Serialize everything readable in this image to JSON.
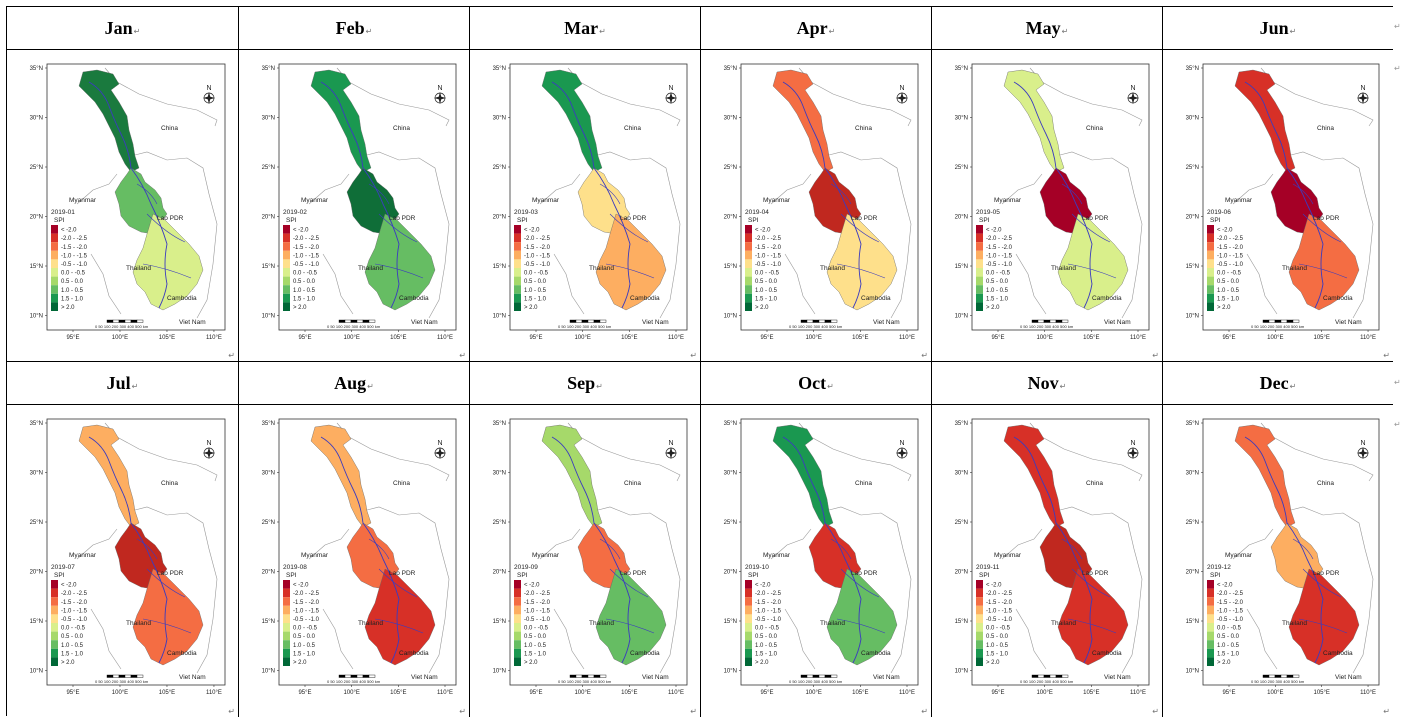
{
  "paragraph_mark": "↵",
  "map": {
    "north_label": "N",
    "lat_labels": [
      "35°N",
      "30°N",
      "25°N",
      "20°N",
      "15°N",
      "10°N"
    ],
    "lon_labels": [
      "95°E",
      "100°E",
      "105°E",
      "110°E"
    ],
    "countries": {
      "china": "China",
      "myanmar": "Myanmar",
      "laos": "Lao PDR",
      "thailand": "Thailand",
      "cambodia": "Cambodia",
      "vietnam": "Viet Nam"
    },
    "scale_label": "0 50 100 200 300 400 500 km",
    "legend_title": "SPI",
    "legend_labels": [
      "< -2.0",
      "-2.0 - -2.5",
      "-1.5 - -2.0",
      "-1.0 - -1.5",
      "-0.5 - -1.0",
      "0.0 - -0.5",
      "0.5 - 0.0",
      "1.0 - 0.5",
      "1.5 - 1.0",
      "> 2.0"
    ],
    "legend_colors": [
      "#a50026",
      "#d73027",
      "#f46d43",
      "#fdae61",
      "#fee08b",
      "#d9ef8b",
      "#a6d96a",
      "#66bd63",
      "#1a9850",
      "#006837"
    ]
  },
  "panels": [
    {
      "month": "Jan",
      "date": "2019-01",
      "upper": "#1a7a3e",
      "middle": "#66bd63",
      "lower": "#d9ef8b"
    },
    {
      "month": "Feb",
      "date": "2019-02",
      "upper": "#1a9850",
      "middle": "#0f6e38",
      "lower": "#66bd63"
    },
    {
      "month": "Mar",
      "date": "2019-03",
      "upper": "#1a9850",
      "middle": "#fee08b",
      "lower": "#fdae61"
    },
    {
      "month": "Apr",
      "date": "2019-04",
      "upper": "#f46d43",
      "middle": "#c0281f",
      "lower": "#fee08b"
    },
    {
      "month": "May",
      "date": "2019-05",
      "upper": "#d9ef8b",
      "middle": "#a50026",
      "lower": "#d9ef8b"
    },
    {
      "month": "Jun",
      "date": "2019-06",
      "upper": "#d73027",
      "middle": "#a50026",
      "lower": "#f46d43"
    },
    {
      "month": "Jul",
      "date": "2019-07",
      "upper": "#fdae61",
      "middle": "#c0281f",
      "lower": "#f46d43"
    },
    {
      "month": "Aug",
      "date": "2019-08",
      "upper": "#fdae61",
      "middle": "#f46d43",
      "lower": "#d73027"
    },
    {
      "month": "Sep",
      "date": "2019-09",
      "upper": "#a6d96a",
      "middle": "#f46d43",
      "lower": "#66bd63"
    },
    {
      "month": "Oct",
      "date": "2019-10",
      "upper": "#1a9850",
      "middle": "#d73027",
      "lower": "#66bd63"
    },
    {
      "month": "Nov",
      "date": "2019-11",
      "upper": "#d73027",
      "middle": "#c0281f",
      "lower": "#d73027"
    },
    {
      "month": "Dec",
      "date": "2019-12",
      "upper": "#f46d43",
      "middle": "#fdae61",
      "lower": "#d73027"
    }
  ]
}
